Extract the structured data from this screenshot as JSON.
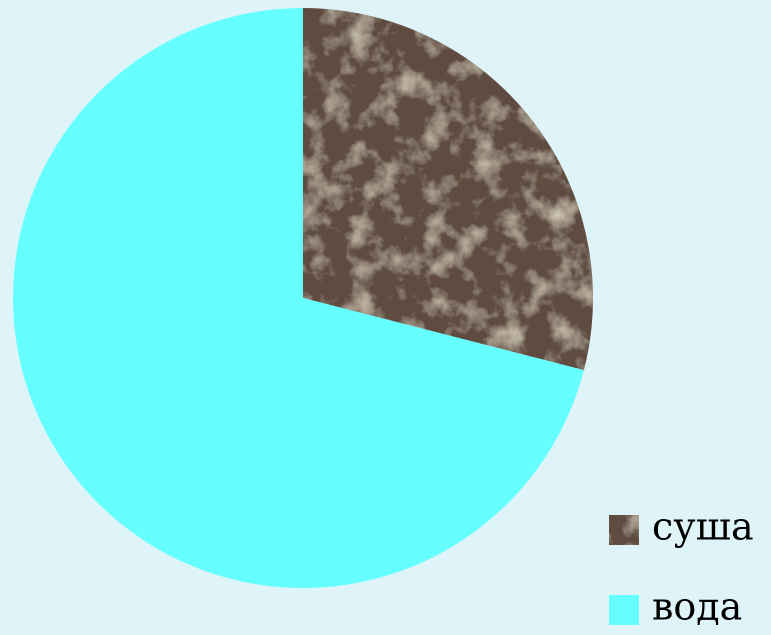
{
  "chart_data": {
    "type": "pie",
    "categories": [
      "суша",
      "вода"
    ],
    "values": [
      29,
      71
    ],
    "colors": [
      "#5f4b3f",
      "#66ffff"
    ],
    "legend": "bottom-right"
  }
}
